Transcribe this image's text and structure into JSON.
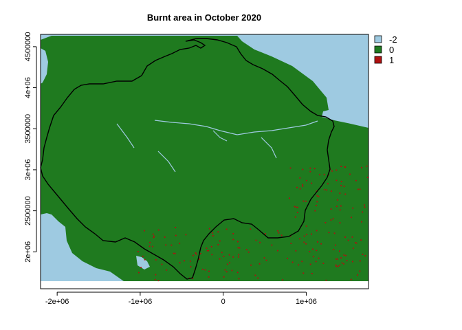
{
  "chart_data": {
    "type": "heatmap",
    "title": "Burnt area in October 2020",
    "xlabel": "",
    "ylabel": "",
    "xlim": [
      -2200000,
      1750000
    ],
    "ylim": [
      1550000,
      4650000
    ],
    "x_ticks": [
      {
        "value": -2000000,
        "label": "-2e+06"
      },
      {
        "value": -1000000,
        "label": "-1e+06"
      },
      {
        "value": 0,
        "label": "0"
      },
      {
        "value": 1000000,
        "label": "1e+06"
      }
    ],
    "y_ticks": [
      {
        "value": 2000000,
        "label": "2e+06"
      },
      {
        "value": 2500000,
        "label": "2500000"
      },
      {
        "value": 3000000,
        "label": "3e+06"
      },
      {
        "value": 3500000,
        "label": "3500000"
      },
      {
        "value": 4000000,
        "label": "4e+06"
      },
      {
        "value": 4500000,
        "label": "4500000"
      }
    ],
    "legend": {
      "placement": "right",
      "entries": [
        {
          "label": "-2",
          "color": "#9ecae1"
        },
        {
          "label": "0",
          "color": "#1f7a1f"
        },
        {
          "label": "1",
          "color": "#b01010"
        }
      ]
    },
    "colors": {
      "no_data": "#9ecae1",
      "unburnt": "#1f7a1f",
      "burnt": "#b01010",
      "boundary": "#000000"
    },
    "grid": false
  }
}
